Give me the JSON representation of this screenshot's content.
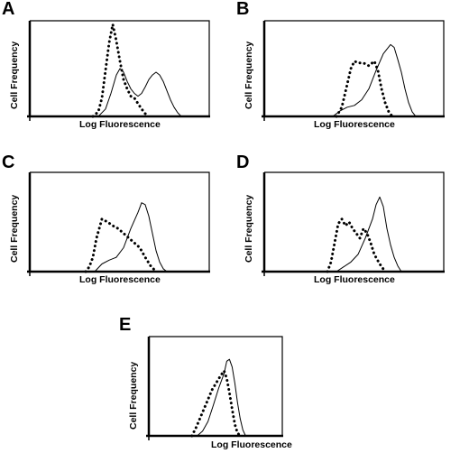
{
  "chart_data": [
    {
      "panel": "A",
      "type": "line",
      "xlabel": "Log Fluorescence",
      "ylabel": "Cell Frequency",
      "xlim": [
        0,
        100
      ],
      "ylim": [
        0,
        100
      ],
      "series": [
        {
          "style": "solid",
          "color": "#000000",
          "points": [
            [
              38,
              0
            ],
            [
              42,
              8
            ],
            [
              45,
              25
            ],
            [
              48,
              45
            ],
            [
              50,
              52
            ],
            [
              52,
              48
            ],
            [
              54,
              38
            ],
            [
              56,
              30
            ],
            [
              58,
              25
            ],
            [
              60,
              22
            ],
            [
              62,
              25
            ],
            [
              64,
              32
            ],
            [
              66,
              40
            ],
            [
              68,
              45
            ],
            [
              70,
              48
            ],
            [
              72,
              45
            ],
            [
              74,
              38
            ],
            [
              76,
              28
            ],
            [
              78,
              18
            ],
            [
              80,
              10
            ],
            [
              82,
              4
            ],
            [
              84,
              0
            ]
          ]
        },
        {
          "style": "dotted",
          "color": "#000000",
          "points": [
            [
              35,
              0
            ],
            [
              38,
              5
            ],
            [
              40,
              20
            ],
            [
              42,
              50
            ],
            [
              44,
              80
            ],
            [
              46,
              100
            ],
            [
              48,
              82
            ],
            [
              50,
              60
            ],
            [
              52,
              40
            ],
            [
              54,
              30
            ],
            [
              56,
              22
            ],
            [
              58,
              20
            ],
            [
              60,
              14
            ],
            [
              62,
              8
            ],
            [
              64,
              3
            ],
            [
              66,
              0
            ]
          ]
        }
      ]
    },
    {
      "panel": "B",
      "type": "line",
      "xlabel": "Log Fluorescence",
      "ylabel": "Cell Frequency",
      "xlim": [
        0,
        100
      ],
      "ylim": [
        0,
        100
      ],
      "series": [
        {
          "style": "solid",
          "color": "#000000",
          "points": [
            [
              38,
              0
            ],
            [
              42,
              6
            ],
            [
              46,
              10
            ],
            [
              50,
              12
            ],
            [
              54,
              18
            ],
            [
              58,
              30
            ],
            [
              62,
              50
            ],
            [
              66,
              68
            ],
            [
              70,
              78
            ],
            [
              72,
              75
            ],
            [
              74,
              62
            ],
            [
              76,
              48
            ],
            [
              78,
              30
            ],
            [
              80,
              15
            ],
            [
              82,
              5
            ],
            [
              84,
              0
            ]
          ]
        },
        {
          "style": "dotted",
          "color": "#000000",
          "points": [
            [
              40,
              0
            ],
            [
              43,
              10
            ],
            [
              46,
              35
            ],
            [
              48,
              52
            ],
            [
              50,
              60
            ],
            [
              52,
              58
            ],
            [
              55,
              58
            ],
            [
              58,
              55
            ],
            [
              61,
              60
            ],
            [
              63,
              50
            ],
            [
              65,
              30
            ],
            [
              67,
              15
            ],
            [
              69,
              5
            ],
            [
              71,
              0
            ]
          ]
        }
      ]
    },
    {
      "panel": "C",
      "type": "line",
      "xlabel": "Log Fluorescence",
      "ylabel": "Cell Frequency",
      "xlim": [
        0,
        100
      ],
      "ylim": [
        0,
        100
      ],
      "series": [
        {
          "style": "solid",
          "color": "#000000",
          "points": [
            [
              36,
              0
            ],
            [
              40,
              8
            ],
            [
              44,
              12
            ],
            [
              48,
              15
            ],
            [
              52,
              25
            ],
            [
              56,
              45
            ],
            [
              60,
              62
            ],
            [
              62,
              72
            ],
            [
              64,
              70
            ],
            [
              66,
              58
            ],
            [
              68,
              40
            ],
            [
              70,
              22
            ],
            [
              72,
              10
            ],
            [
              74,
              3
            ],
            [
              76,
              0
            ]
          ]
        },
        {
          "style": "dotted",
          "color": "#000000",
          "points": [
            [
              31,
              0
            ],
            [
              33,
              5
            ],
            [
              35,
              15
            ],
            [
              37,
              35
            ],
            [
              40,
              55
            ],
            [
              43,
              52
            ],
            [
              46,
              48
            ],
            [
              49,
              45
            ],
            [
              52,
              40
            ],
            [
              55,
              35
            ],
            [
              58,
              30
            ],
            [
              61,
              25
            ],
            [
              64,
              15
            ],
            [
              67,
              6
            ],
            [
              70,
              0
            ]
          ]
        }
      ]
    },
    {
      "panel": "D",
      "type": "line",
      "xlabel": "Log Fluorescence",
      "ylabel": "Cell Frequency",
      "xlim": [
        0,
        100
      ],
      "ylim": [
        0,
        100
      ],
      "series": [
        {
          "style": "solid",
          "color": "#000000",
          "points": [
            [
              40,
              0
            ],
            [
              44,
              5
            ],
            [
              48,
              10
            ],
            [
              52,
              18
            ],
            [
              56,
              35
            ],
            [
              60,
              55
            ],
            [
              62,
              70
            ],
            [
              64,
              78
            ],
            [
              66,
              68
            ],
            [
              68,
              45
            ],
            [
              70,
              28
            ],
            [
              72,
              15
            ],
            [
              74,
              6
            ],
            [
              76,
              0
            ]
          ]
        },
        {
          "style": "dotted",
          "color": "#000000",
          "points": [
            [
              35,
              0
            ],
            [
              37,
              10
            ],
            [
              39,
              30
            ],
            [
              41,
              50
            ],
            [
              43,
              55
            ],
            [
              45,
              48
            ],
            [
              47,
              52
            ],
            [
              49,
              45
            ],
            [
              51,
              40
            ],
            [
              53,
              35
            ],
            [
              55,
              45
            ],
            [
              57,
              40
            ],
            [
              59,
              30
            ],
            [
              61,
              18
            ],
            [
              64,
              8
            ],
            [
              67,
              0
            ]
          ]
        }
      ]
    },
    {
      "panel": "E",
      "type": "line",
      "xlabel": "Log Fluorescence",
      "ylabel": "Cell Frequency",
      "xlim": [
        0,
        100
      ],
      "ylim": [
        0,
        100
      ],
      "series": [
        {
          "style": "solid",
          "color": "#000000",
          "points": [
            [
              36,
              0
            ],
            [
              40,
              5
            ],
            [
              44,
              15
            ],
            [
              48,
              32
            ],
            [
              52,
              50
            ],
            [
              56,
              65
            ],
            [
              58,
              78
            ],
            [
              60,
              80
            ],
            [
              62,
              72
            ],
            [
              64,
              55
            ],
            [
              66,
              35
            ],
            [
              68,
              18
            ],
            [
              70,
              6
            ],
            [
              72,
              0
            ]
          ]
        },
        {
          "style": "dotted",
          "color": "#000000",
          "points": [
            [
              32,
              0
            ],
            [
              35,
              8
            ],
            [
              38,
              18
            ],
            [
              41,
              28
            ],
            [
              44,
              38
            ],
            [
              47,
              48
            ],
            [
              50,
              55
            ],
            [
              53,
              62
            ],
            [
              56,
              68
            ],
            [
              58,
              60
            ],
            [
              60,
              45
            ],
            [
              62,
              28
            ],
            [
              64,
              12
            ],
            [
              66,
              3
            ],
            [
              68,
              0
            ]
          ]
        }
      ]
    }
  ]
}
